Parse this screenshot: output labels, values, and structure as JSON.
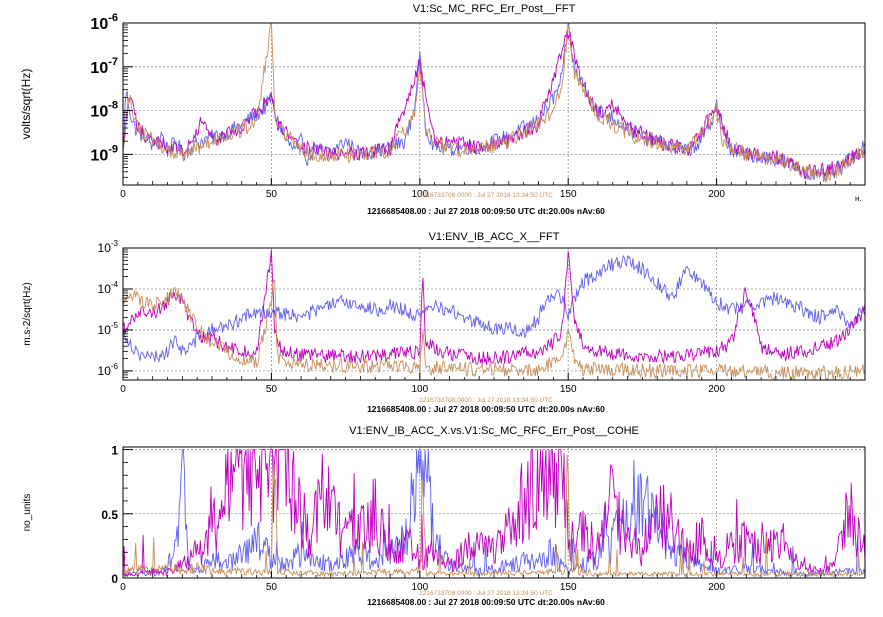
{
  "colors": {
    "blue": "#6060f0",
    "magenta": "#c000c0",
    "tan": "#c8905a",
    "grid": "#909090",
    "frame": "#000000"
  },
  "chart_data": [
    {
      "type": "line",
      "title": "V1:Sc_MC_RFC_Err_Post__FFT",
      "ylabel": "volts/sqrt(Hz)",
      "xlabel": "",
      "x_unit_fragment": "н.",
      "log_y": true,
      "xlim": [
        0,
        250
      ],
      "ylim": [
        2e-10,
        1e-06
      ],
      "x_ticks": [
        0,
        50,
        100,
        150,
        200
      ],
      "x_tick_labels": [
        "0",
        "50",
        "100",
        "150",
        "200"
      ],
      "y_ticks": [
        1e-09,
        1e-08,
        1e-07,
        1e-06
      ],
      "y_tick_labels": [
        {
          "mantissa": "10",
          "exp": "-9"
        },
        {
          "mantissa": "10",
          "exp": "-8"
        },
        {
          "mantissa": "10",
          "exp": "-7"
        },
        {
          "mantissa": "10",
          "exp": "-6"
        }
      ],
      "grid": true,
      "footer_tan": "1216733708.0000 : Jul 27 2018 13:34:50 UTC",
      "footer_black": "1216685408.00 : Jul 27 2018 00:09:50 UTC dt:20.00s nAv:60",
      "series": [
        {
          "color": "blue",
          "x": [
            0,
            1,
            3,
            5,
            8,
            10,
            13,
            15,
            18,
            20,
            25,
            30,
            35,
            40,
            45,
            48,
            50,
            52,
            55,
            58,
            60,
            62,
            65,
            70,
            75,
            80,
            85,
            90,
            95,
            98,
            100,
            101,
            102,
            105,
            110,
            115,
            120,
            125,
            130,
            135,
            140,
            143,
            146,
            148,
            150,
            152,
            155,
            158,
            160,
            165,
            170,
            175,
            180,
            185,
            190,
            195,
            198,
            200,
            202,
            205,
            210,
            215,
            220,
            225,
            230,
            235,
            238,
            240,
            242,
            245,
            248,
            250
          ],
          "y": [
            1e-09,
            3e-08,
            6e-09,
            3e-09,
            2.5e-09,
            1.5e-09,
            3e-09,
            1.2e-09,
            2e-09,
            1e-09,
            1.8e-09,
            2.5e-09,
            3e-09,
            5e-09,
            8e-09,
            1.2e-08,
            2e-08,
            6e-09,
            2e-09,
            1.2e-09,
            2e-09,
            8e-10,
            1.3e-09,
            1.1e-09,
            2e-09,
            1e-09,
            1.2e-09,
            1.4e-09,
            2e-09,
            1e-08,
            1.5e-07,
            3e-08,
            4e-09,
            1.5e-09,
            1.3e-09,
            1.5e-09,
            1.4e-09,
            2e-09,
            2.5e-09,
            4e-09,
            6e-09,
            1.2e-08,
            2.5e-08,
            6e-08,
            9e-07,
            9e-08,
            4e-08,
            1.6e-08,
            1e-08,
            7e-09,
            4e-09,
            2.5e-09,
            2e-09,
            1.5e-09,
            1.2e-09,
            2e-09,
            5e-09,
            1.5e-08,
            3e-09,
            1.2e-09,
            1e-09,
            9e-10,
            8e-10,
            6e-10,
            4e-10,
            3e-10,
            3.5e-10,
            4e-10,
            5e-10,
            8e-10,
            1.2e-09,
            1.5e-09
          ]
        },
        {
          "color": "magenta",
          "x": [
            0,
            2,
            5,
            10,
            15,
            20,
            27,
            30,
            35,
            40,
            48,
            50,
            52,
            60,
            70,
            80,
            90,
            100,
            105,
            120,
            130,
            140,
            150,
            155,
            160,
            165,
            170,
            180,
            190,
            200,
            205,
            210,
            220,
            230,
            240,
            250
          ],
          "y": [
            1e-09,
            2.5e-08,
            4e-09,
            2e-09,
            1.5e-09,
            1.2e-09,
            6e-09,
            2e-09,
            3e-09,
            4e-09,
            1.5e-08,
            2.5e-08,
            5e-09,
            1.5e-09,
            1e-09,
            1.1e-09,
            1.3e-09,
            1.2e-07,
            2e-09,
            1.5e-09,
            2e-09,
            5e-09,
            6e-07,
            4e-08,
            9e-09,
            1.5e-08,
            4e-09,
            2e-09,
            1.2e-09,
            1.2e-08,
            1.5e-09,
            1e-09,
            9e-10,
            4e-10,
            5e-10,
            1.3e-09
          ]
        },
        {
          "color": "tan",
          "x": [
            0,
            2,
            5,
            10,
            15,
            20,
            30,
            40,
            45,
            50,
            51,
            52,
            60,
            70,
            80,
            90,
            98,
            100,
            102,
            110,
            120,
            130,
            140,
            145,
            148,
            150,
            152,
            155,
            160,
            170,
            180,
            190,
            200,
            202,
            210,
            220,
            230,
            235,
            240,
            245,
            250
          ],
          "y": [
            1e-09,
            2e-08,
            4e-09,
            2e-09,
            1.3e-09,
            1e-09,
            2e-09,
            3.5e-09,
            6e-09,
            9e-07,
            1.5e-08,
            5e-09,
            1.2e-09,
            9e-10,
            1e-09,
            1.2e-09,
            8e-09,
            1e-07,
            3e-09,
            1.3e-09,
            1.3e-09,
            2e-09,
            5e-09,
            1e-08,
            4e-08,
            1e-06,
            8e-08,
            3e-08,
            8e-09,
            3e-09,
            1.8e-09,
            1.2e-09,
            1e-08,
            2e-09,
            1e-09,
            8e-10,
            4e-10,
            3e-10,
            4e-10,
            7e-10,
            1.4e-09
          ]
        }
      ]
    },
    {
      "type": "line",
      "title": "V1:ENV_IB_ACC_X__FFT",
      "ylabel": "m.s-2/sqrt(Hz)",
      "xlabel": "",
      "log_y": true,
      "xlim": [
        0,
        250
      ],
      "ylim": [
        6e-07,
        0.001
      ],
      "x_ticks": [
        0,
        50,
        100,
        150,
        200
      ],
      "x_tick_labels": [
        "0",
        "50",
        "100",
        "150",
        "200"
      ],
      "y_ticks": [
        1e-06,
        1e-05,
        0.0001,
        0.001
      ],
      "y_tick_labels": [
        {
          "mantissa": "10",
          "exp": "-6"
        },
        {
          "mantissa": "10",
          "exp": "-5"
        },
        {
          "mantissa": "10",
          "exp": "-4"
        },
        {
          "mantissa": "10",
          "exp": "-3"
        }
      ],
      "grid": true,
      "footer_tan": "1216733708.0000 : Jul 27 2018 13:34:50 UTC",
      "footer_black": "1216685408.00 : Jul 27 2018 00:09:50 UTC dt:20.00s nAv:60",
      "series": [
        {
          "color": "blue",
          "x": [
            0,
            3,
            6,
            10,
            15,
            18,
            20,
            25,
            30,
            35,
            40,
            45,
            50,
            55,
            60,
            65,
            70,
            75,
            80,
            85,
            90,
            95,
            100,
            105,
            110,
            115,
            120,
            125,
            130,
            135,
            140,
            142,
            145,
            148,
            150,
            153,
            155,
            160,
            165,
            170,
            175,
            178,
            180,
            185,
            190,
            195,
            200,
            205,
            210,
            215,
            220,
            225,
            230,
            235,
            240,
            245,
            250
          ],
          "y": [
            1e-05,
            4e-06,
            2.5e-06,
            2e-06,
            3e-06,
            6e-06,
            3e-06,
            6e-06,
            1e-05,
            1.2e-05,
            2e-05,
            2.5e-05,
            3e-05,
            2.5e-05,
            2e-05,
            3e-05,
            4e-05,
            5e-05,
            4e-05,
            3e-05,
            4e-05,
            3e-05,
            2e-05,
            4e-05,
            3e-05,
            2e-05,
            1.5e-05,
            1e-05,
            1.2e-05,
            8e-06,
            2e-05,
            5e-05,
            8e-05,
            6e-05,
            2e-05,
            8e-05,
            0.00015,
            0.00025,
            0.0004,
            0.0005,
            0.0003,
            0.0002,
            0.00015,
            6e-05,
            0.0003,
            0.00015,
            5e-05,
            3e-05,
            4e-05,
            5e-05,
            6e-05,
            4e-05,
            3e-05,
            2e-05,
            3e-05,
            1.5e-05,
            3e-05
          ]
        },
        {
          "color": "magenta",
          "x": [
            0,
            3,
            6,
            10,
            15,
            18,
            20,
            23,
            25,
            30,
            35,
            40,
            45,
            50,
            51,
            52,
            55,
            60,
            70,
            80,
            90,
            100,
            101,
            102,
            110,
            120,
            130,
            140,
            145,
            148,
            150,
            152,
            155,
            160,
            170,
            180,
            190,
            200,
            205,
            210,
            215,
            220,
            230,
            240,
            245,
            250
          ],
          "y": [
            1e-05,
            2e-05,
            3e-05,
            2.5e-05,
            5e-05,
            8e-05,
            5e-05,
            1.5e-05,
            8e-06,
            6e-06,
            4e-06,
            3e-06,
            2.5e-06,
            0.0008,
            1e-05,
            4e-06,
            3e-06,
            2.5e-06,
            2.3e-06,
            2.2e-06,
            2.5e-06,
            3e-06,
            0.0002,
            5e-06,
            2.5e-06,
            2e-06,
            2.2e-06,
            3e-06,
            5e-06,
            1e-05,
            0.0008,
            1.5e-05,
            5e-06,
            3e-06,
            2.3e-06,
            2.2e-06,
            2.5e-06,
            3e-06,
            5e-06,
            0.0001,
            4e-06,
            2.5e-06,
            3e-06,
            5e-06,
            1e-05,
            3e-05
          ]
        },
        {
          "color": "tan",
          "x": [
            0,
            3,
            6,
            10,
            15,
            18,
            20,
            25,
            30,
            35,
            40,
            45,
            50,
            51,
            52,
            55,
            60,
            80,
            100,
            101,
            102,
            120,
            140,
            148,
            150,
            152,
            155,
            180,
            200,
            201,
            202,
            220,
            240,
            250
          ],
          "y": [
            4e-05,
            8e-05,
            5e-05,
            4e-05,
            6e-05,
            9e-05,
            5e-05,
            1.2e-05,
            5e-06,
            3e-06,
            2e-06,
            1.6e-06,
            5e-05,
            0.0003,
            2e-06,
            1.5e-06,
            1.4e-06,
            1.3e-06,
            1.2e-06,
            1e-05,
            1.2e-06,
            1.1e-06,
            1.1e-06,
            2e-06,
            8e-06,
            2e-06,
            1.1e-06,
            1e-06,
            1e-06,
            2e-06,
            1e-06,
            9e-07,
            9e-07,
            1e-06
          ]
        }
      ]
    },
    {
      "type": "line",
      "title": "V1:ENV_IB_ACC_X.vs.V1:Sc_MC_RFC_Err_Post__COHE",
      "ylabel": "no_units",
      "xlabel": "",
      "log_y": false,
      "xlim": [
        0,
        250
      ],
      "ylim": [
        0,
        1.02
      ],
      "x_ticks": [
        0,
        50,
        100,
        150,
        200
      ],
      "x_tick_labels": [
        "0",
        "50",
        "100",
        "150",
        "200"
      ],
      "y_ticks": [
        0,
        0.5,
        1
      ],
      "y_tick_labels": [
        "0",
        "0.5",
        "1"
      ],
      "grid": true,
      "footer_tan": "1216733708.0000 : Jul 27 2018 13:34:50 UTC",
      "footer_black": "1216685408.00 : Jul 27 2018 00:09:50 UTC dt:20.00s nAv:60",
      "series": [
        {
          "color": "blue",
          "x": [
            0,
            5,
            10,
            15,
            18,
            20,
            22,
            25,
            30,
            35,
            40,
            45,
            50,
            55,
            60,
            65,
            70,
            75,
            80,
            85,
            90,
            95,
            98,
            100,
            102,
            105,
            110,
            120,
            130,
            140,
            145,
            150,
            155,
            160,
            165,
            170,
            175,
            180,
            185,
            190,
            200,
            210,
            220,
            230,
            240,
            250
          ],
          "y": [
            0.02,
            0.05,
            0.03,
            0.08,
            0.3,
            0.95,
            0.1,
            0.05,
            0.15,
            0.1,
            0.2,
            0.3,
            0.15,
            0.1,
            0.2,
            0.15,
            0.1,
            0.15,
            0.2,
            0.1,
            0.2,
            0.3,
            0.9,
            0.95,
            0.85,
            0.3,
            0.1,
            0.05,
            0.1,
            0.15,
            0.2,
            0.05,
            0.1,
            0.15,
            0.3,
            0.45,
            0.6,
            0.4,
            0.2,
            0.15,
            0.05,
            0.08,
            0.05,
            0.03,
            0.05,
            0.05
          ]
        },
        {
          "color": "magenta",
          "x": [
            0,
            5,
            10,
            15,
            20,
            25,
            30,
            33,
            35,
            38,
            40,
            43,
            45,
            48,
            50,
            52,
            55,
            60,
            63,
            65,
            68,
            70,
            75,
            80,
            85,
            90,
            95,
            100,
            105,
            110,
            115,
            120,
            125,
            130,
            133,
            135,
            138,
            140,
            143,
            145,
            148,
            150,
            152,
            155,
            158,
            160,
            163,
            165,
            168,
            170,
            173,
            175,
            178,
            180,
            183,
            185,
            188,
            190,
            193,
            195,
            198,
            200,
            205,
            210,
            215,
            220,
            225,
            230,
            235,
            240,
            243,
            245,
            248,
            250
          ],
          "y": [
            0.02,
            0.03,
            0.05,
            0.05,
            0.1,
            0.2,
            0.35,
            0.55,
            0.65,
            0.85,
            0.9,
            0.95,
            0.98,
            0.97,
            0.98,
            0.96,
            0.9,
            0.6,
            0.3,
            0.5,
            0.75,
            0.6,
            0.3,
            0.4,
            0.5,
            0.2,
            0.3,
            0.15,
            0.2,
            0.1,
            0.2,
            0.25,
            0.2,
            0.35,
            0.5,
            0.6,
            0.75,
            0.85,
            0.9,
            0.97,
            0.95,
            0.3,
            0.2,
            0.4,
            0.3,
            0.25,
            0.5,
            0.6,
            0.4,
            0.3,
            0.25,
            0.2,
            0.5,
            0.55,
            0.45,
            0.3,
            0.35,
            0.2,
            0.25,
            0.3,
            0.2,
            0.15,
            0.25,
            0.3,
            0.2,
            0.3,
            0.15,
            0.1,
            0.05,
            0.1,
            0.45,
            0.5,
            0.3,
            0.15
          ]
        },
        {
          "color": "tan",
          "x": [
            0,
            5,
            10,
            15,
            20,
            25,
            30,
            40,
            50,
            51,
            52,
            60,
            70,
            80,
            90,
            100,
            101,
            102,
            110,
            120,
            130,
            140,
            149,
            150,
            151,
            160,
            170,
            180,
            190,
            200,
            210,
            220,
            230,
            240,
            250
          ],
          "y": [
            0.05,
            0.08,
            0.05,
            0.1,
            0.05,
            0.08,
            0.06,
            0.05,
            0.04,
            1,
            0.05,
            0.04,
            0.03,
            0.04,
            0.05,
            0.04,
            0.8,
            0.04,
            0.03,
            0.03,
            0.04,
            0.04,
            0.05,
            1,
            0.05,
            0.03,
            0.03,
            0.03,
            0.03,
            0.03,
            0.03,
            0.03,
            0.03,
            0.03,
            0.03
          ]
        }
      ]
    }
  ]
}
